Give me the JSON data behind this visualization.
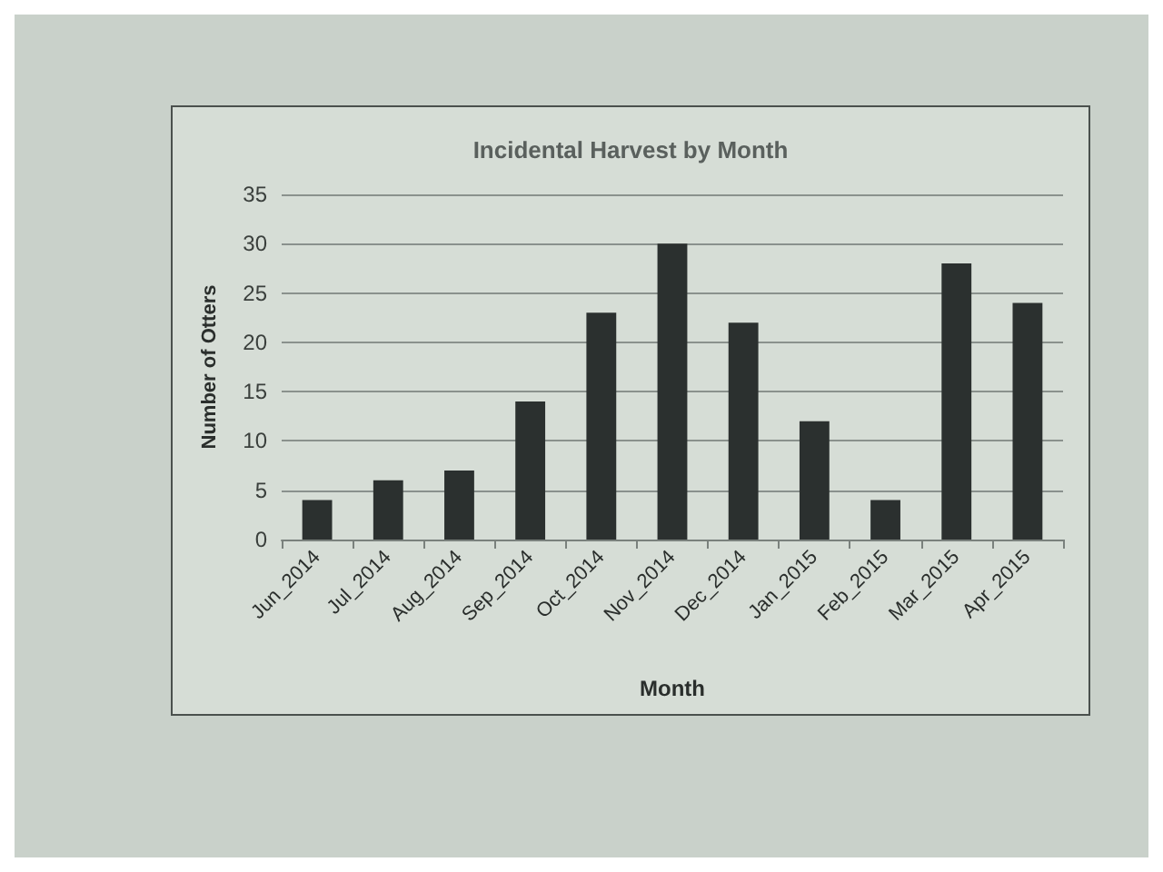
{
  "chart_data": {
    "type": "bar",
    "title": "Incidental Harvest by Month",
    "xlabel": "Month",
    "ylabel": "Number of Otters",
    "categories": [
      "Jun_2014",
      "Jul_2014",
      "Aug_2014",
      "Sep_2014",
      "Oct_2014",
      "Nov_2014",
      "Dec_2014",
      "Jan_2015",
      "Feb_2015",
      "Mar_2015",
      "Apr_2015"
    ],
    "values": [
      4,
      6,
      7,
      14,
      23,
      30,
      22,
      12,
      4,
      28,
      24
    ],
    "color": "#2b302f",
    "ylim": [
      0,
      35
    ],
    "yticks": [
      0,
      5,
      10,
      15,
      20,
      25,
      30,
      35
    ],
    "grid": "y"
  }
}
